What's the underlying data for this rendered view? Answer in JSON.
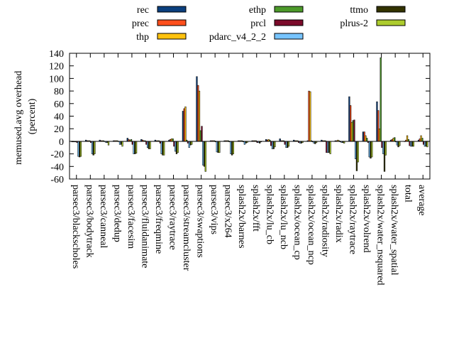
{
  "chart_data": {
    "type": "bar",
    "ylabel": "memused.avg overhead (percent)",
    "ylabel_lines": [
      "memused.avg overhead",
      "(percent)"
    ],
    "ylim": [
      -60,
      140
    ],
    "yticks": [
      -60,
      -40,
      -20,
      0,
      20,
      40,
      60,
      80,
      100,
      120,
      140
    ],
    "grid": false,
    "legend_position": "top, outside plot, three columns",
    "categories": [
      "parsec3/blackscholes",
      "parsec3/bodytrack",
      "parsec3/canneal",
      "parsec3/dedup",
      "parsec3/facesim",
      "parsec3/fluidanimate",
      "parsec3/freqmine",
      "parsec3/raytrace",
      "parsec3/streamcluster",
      "parsec3/swaptions",
      "parsec3/vips",
      "parsec3/x264",
      "splash2x/barnes",
      "splash2x/fft",
      "splash2x/lu_cb",
      "splash2x/lu_ncb",
      "splash2x/ocean_cp",
      "splash2x/ocean_ncp",
      "splash2x/radiosity",
      "splash2x/radix",
      "splash2x/raytrace",
      "splash2x/volrend",
      "splash2x/water_nsquared",
      "splash2x/water_spatial",
      "total",
      "average"
    ],
    "series": [
      {
        "name": "rec",
        "color": "#0b3f7e",
        "values": [
          -1,
          2,
          2,
          1,
          5,
          3,
          2,
          2,
          48,
          103,
          1,
          1,
          1,
          1,
          3,
          4,
          2,
          1,
          2,
          1,
          71,
          15,
          63,
          2,
          0,
          2
        ]
      },
      {
        "name": "prec",
        "color": "#ff4f1c",
        "values": [
          -1,
          1,
          1,
          1,
          3,
          2,
          1,
          3,
          52,
          89,
          1,
          1,
          1,
          1,
          2,
          1,
          1,
          80,
          1,
          1,
          57,
          15,
          49,
          3,
          2,
          4
        ]
      },
      {
        "name": "thp",
        "color": "#ffc20e",
        "values": [
          -1,
          1,
          1,
          1,
          2,
          1,
          1,
          4,
          55,
          80,
          1,
          1,
          1,
          1,
          3,
          1,
          1,
          79,
          1,
          2,
          30,
          9,
          20,
          5,
          9,
          9
        ]
      },
      {
        "name": "ethp",
        "color": "#4c9a2a",
        "values": [
          -1,
          1,
          1,
          1,
          3,
          1,
          1,
          4,
          2,
          17,
          1,
          1,
          1,
          1,
          2,
          1,
          1,
          1,
          1,
          1,
          33,
          5,
          133,
          6,
          3,
          5
        ]
      },
      {
        "name": "prcl",
        "color": "#7b0a2a",
        "values": [
          -2,
          -2,
          0,
          0,
          -5,
          -5,
          -3,
          -8,
          -3,
          24,
          -1,
          -1,
          -1,
          -2,
          -7,
          -5,
          -2,
          -1,
          -18,
          -1,
          34,
          -2,
          -10,
          -1,
          -7,
          -5
        ]
      },
      {
        "name": "pdarc_v4_2_2",
        "color": "#77c4ff",
        "values": [
          -24,
          -20,
          -2,
          -5,
          -20,
          -10,
          -20,
          -16,
          -10,
          -38,
          -17,
          -20,
          -5,
          -2,
          -12,
          -10,
          -3,
          -3,
          -18,
          -2,
          -28,
          -25,
          -20,
          -6,
          -8,
          -8
        ]
      },
      {
        "name": "ttmo",
        "color": "#333300",
        "values": [
          -25,
          -22,
          -2,
          -5,
          -20,
          -12,
          -22,
          -20,
          -6,
          -40,
          -18,
          -22,
          -3,
          -3,
          -12,
          -10,
          -3,
          -4,
          -18,
          -2,
          -47,
          -27,
          -48,
          -9,
          -8,
          -8
        ]
      },
      {
        "name": "plrus-2",
        "color": "#adcc2e",
        "values": [
          -24,
          -20,
          -6,
          -8,
          -19,
          -12,
          -22,
          -18,
          -5,
          -48,
          -18,
          -20,
          -2,
          -1,
          -9,
          -8,
          -2,
          -2,
          -20,
          -3,
          -33,
          -25,
          -22,
          -7,
          -8,
          -9
        ]
      }
    ]
  }
}
